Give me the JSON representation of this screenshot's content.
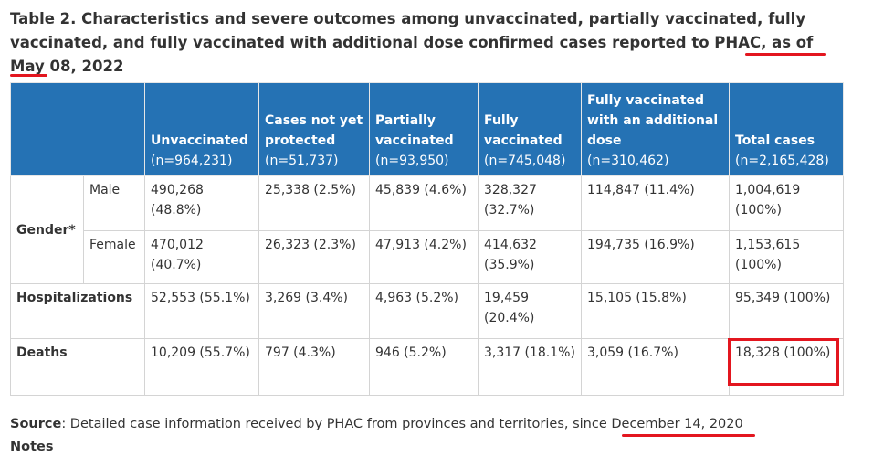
{
  "caption": {
    "text": "Table 2. Characteristics and severe outcomes among unvaccinated, partially vaccinated, fully vaccinated, and fully vaccinated with additional dose confirmed cases reported to PHAC, as of May 08, 2022"
  },
  "table": {
    "headers": [
      {
        "label": "",
        "n": ""
      },
      {
        "label": "Unvaccinated",
        "n": "(n=964,231)"
      },
      {
        "label": "Cases not yet protected",
        "n": "(n=51,737)"
      },
      {
        "label": "Partially vaccinated",
        "n": "(n=93,950)"
      },
      {
        "label": "Fully vaccinated",
        "n": "(n=745,048)"
      },
      {
        "label": "Fully vaccinated with an additional dose",
        "n": "(n=310,462)"
      },
      {
        "label": "Total cases",
        "n": "(n=2,165,428)"
      }
    ],
    "rows": [
      {
        "group": "Gender*",
        "sub": "Male",
        "cells": [
          "490,268 (48.8%)",
          "25,338 (2.5%)",
          "45,839 (4.6%)",
          "328,327 (32.7%)",
          "114,847 (11.4%)",
          "1,004,619 (100%)"
        ]
      },
      {
        "sub": "Female",
        "cells": [
          "470,012 (40.7%)",
          "26,323 (2.3%)",
          "47,913 (4.2%)",
          "414,632 (35.9%)",
          "194,735 (16.9%)",
          "1,153,615 (100%)"
        ]
      },
      {
        "group": "Hospitalizations",
        "cells": [
          "52,553 (55.1%)",
          "3,269 (3.4%)",
          "4,963 (5.2%)",
          "19,459 (20.4%)",
          "15,105 (15.8%)",
          "95,349 (100%)"
        ]
      },
      {
        "group": "Deaths",
        "cells": [
          "10,209 (55.7%)",
          "797 (4.3%)",
          "946 (5.2%)",
          "3,317 (18.1%)",
          "3,059 (16.7%)",
          "18,328 (100%)"
        ]
      }
    ]
  },
  "source": {
    "label": "Source",
    "text": ": Detailed case information received by PHAC from provinces and territories, since December 14, 2020"
  },
  "notes": {
    "label": "Notes"
  },
  "annotations": {
    "color": "#e3161f",
    "header_color": "#2572b4"
  }
}
